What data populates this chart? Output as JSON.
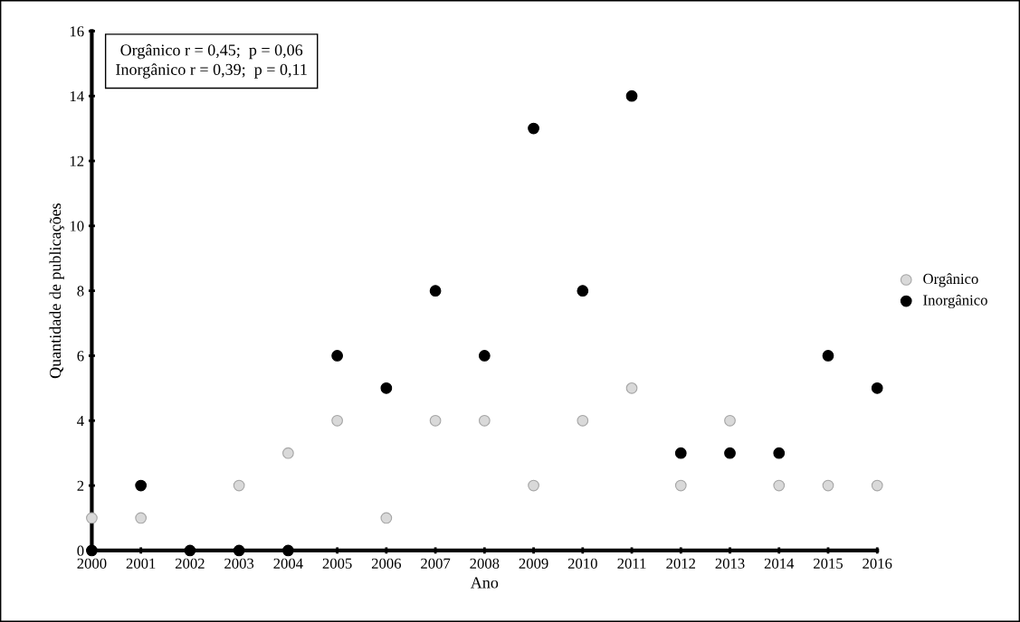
{
  "chart_data": {
    "type": "scatter",
    "xlabel": "Ano",
    "ylabel": "Quantidade de publicações",
    "x": [
      2000,
      2001,
      2002,
      2003,
      2004,
      2005,
      2006,
      2007,
      2008,
      2009,
      2010,
      2011,
      2012,
      2013,
      2014,
      2015,
      2016
    ],
    "series": [
      {
        "name": "Orgânico",
        "color": "#d9d9d9",
        "values": [
          1,
          1,
          null,
          2,
          3,
          4,
          1,
          4,
          4,
          2,
          4,
          5,
          2,
          4,
          2,
          2,
          2
        ]
      },
      {
        "name": "Inorgânico",
        "color": "#000000",
        "values": [
          0,
          2,
          0,
          0,
          0,
          6,
          5,
          8,
          6,
          13,
          8,
          14,
          3,
          3,
          3,
          6,
          5
        ]
      }
    ],
    "xlim": [
      2000,
      2016
    ],
    "xticks": [
      2000,
      2001,
      2002,
      2003,
      2004,
      2005,
      2006,
      2007,
      2008,
      2009,
      2010,
      2011,
      2012,
      2013,
      2014,
      2015,
      2016
    ],
    "ylim": [
      0,
      16
    ],
    "yticks": [
      0,
      2,
      4,
      6,
      8,
      10,
      12,
      14,
      16
    ],
    "annotations": [
      "Orgânico r = 0,45;  p = 0,06\nInorgânico r = 0,39;  p = 0,11"
    ],
    "marker": "circle",
    "legend": "right",
    "grid": false
  }
}
